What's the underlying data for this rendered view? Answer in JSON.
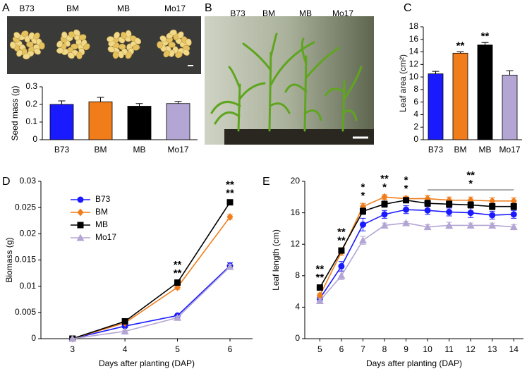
{
  "panel_labels": [
    "A",
    "B",
    "C",
    "D",
    "E"
  ],
  "photos": [
    {
      "labels": [
        "B73",
        "BM",
        "MB",
        "Mo17"
      ]
    },
    {
      "labels": [
        "B73",
        "BM",
        "MB",
        "Mo17"
      ]
    }
  ],
  "chart_data": [
    {
      "type": "bar",
      "ylabel": "Seed mass (g)",
      "categories": [
        "B73",
        "BM",
        "MB",
        "Mo17"
      ],
      "values": [
        0.2,
        0.215,
        0.19,
        0.205
      ],
      "errors": [
        0.02,
        0.025,
        0.015,
        0.012
      ],
      "colors": [
        "#1a1aff",
        "#f07c1a",
        "#000000",
        "#b3a6d4"
      ],
      "ylim": [
        0,
        0.3
      ],
      "yticks": [
        0,
        0.1,
        0.2,
        0.3
      ],
      "grid": false
    },
    {
      "type": "bar",
      "ylabel": "Leaf area (cm²)",
      "categories": [
        "B73",
        "BM",
        "MB",
        "Mo17"
      ],
      "values": [
        10.5,
        13.8,
        15.1,
        10.3
      ],
      "errors": [
        0.4,
        0.2,
        0.4,
        0.7
      ],
      "colors": [
        "#1a1aff",
        "#f07c1a",
        "#000000",
        "#b3a6d4"
      ],
      "ylim": [
        0,
        18
      ],
      "yticks": [
        0,
        2,
        4,
        6,
        8,
        10,
        12,
        14,
        16,
        18
      ],
      "grid": false,
      "annotations": [
        {
          "at": "BM",
          "lines": [
            {
              "text": "**",
              "color": "#000000"
            }
          ]
        },
        {
          "at": "MB",
          "lines": [
            {
              "text": "**",
              "color": "#000000"
            }
          ]
        }
      ]
    },
    {
      "type": "line",
      "xlabel": "Days after planting (DAP)",
      "ylabel": "Biomass (g)",
      "x": [
        3,
        4,
        5,
        6
      ],
      "xlim": [
        2.4,
        6.43
      ],
      "xticks": [
        3,
        4,
        5,
        6
      ],
      "ylim": [
        0,
        0.03
      ],
      "yticks": [
        0,
        0.005,
        0.01,
        0.015,
        0.02,
        0.025,
        0.03
      ],
      "grid": false,
      "legend": "upper left",
      "series": [
        {
          "name": "B73",
          "color": "#1a1aff",
          "marker": "circle",
          "values": [
            0,
            0.0024,
            0.0044,
            0.0139
          ],
          "errors": [
            0,
            0.0003,
            0.0002,
            0.0006
          ]
        },
        {
          "name": "BM",
          "color": "#f07c1a",
          "marker": "diamond",
          "values": [
            0,
            0.003,
            0.0098,
            0.0232
          ],
          "errors": [
            0,
            0.0002,
            0.0004,
            0.0004
          ]
        },
        {
          "name": "MB",
          "color": "#000000",
          "marker": "square",
          "values": [
            0,
            0.0033,
            0.0107,
            0.026
          ],
          "errors": [
            0,
            0.0002,
            0.0003,
            0.0003
          ]
        },
        {
          "name": "Mo17",
          "color": "#b3a6d4",
          "marker": "triangle",
          "values": [
            0,
            0.0014,
            0.004,
            0.0137
          ],
          "errors": [
            0,
            0.0002,
            0.0002,
            0.0005
          ]
        }
      ],
      "annotations": [
        {
          "at": 5,
          "lines": [
            {
              "text": "**",
              "color": "#000000"
            },
            {
              "text": "**",
              "color": "#d9822b"
            }
          ]
        },
        {
          "at": 6,
          "lines": [
            {
              "text": "**",
              "color": "#000000"
            },
            {
              "text": "**",
              "color": "#d9822b"
            }
          ]
        }
      ]
    },
    {
      "type": "line",
      "xlabel": "Days after planting (DAP)",
      "ylabel": "Leaf length (cm)",
      "x": [
        5,
        6,
        7,
        8,
        9,
        10,
        11,
        12,
        13,
        14
      ],
      "xlim": [
        4.3,
        14.45
      ],
      "xticks": [
        5,
        6,
        7,
        8,
        9,
        10,
        11,
        12,
        13,
        14
      ],
      "ylim": [
        0,
        20
      ],
      "yticks": [
        0,
        4,
        8,
        12,
        16,
        20
      ],
      "grid": false,
      "significance_span": [
        10,
        14
      ],
      "series": [
        {
          "name": "B73",
          "color": "#1a1aff",
          "marker": "circle",
          "values": [
            5.1,
            9.2,
            14.5,
            15.8,
            16.4,
            16.3,
            16.1,
            16.0,
            15.7,
            15.8
          ],
          "errors": [
            0.4,
            0.6,
            0.8,
            0.5,
            0.5,
            0.5,
            0.5,
            0.6,
            0.5,
            0.5
          ]
        },
        {
          "name": "BM",
          "color": "#f07c1a",
          "marker": "diamond",
          "values": [
            5.5,
            11.0,
            16.8,
            18.0,
            17.8,
            17.8,
            17.6,
            17.6,
            17.5,
            17.5
          ],
          "errors": [
            0.3,
            0.4,
            0.4,
            0.3,
            0.3,
            0.4,
            0.4,
            0.4,
            0.4,
            0.4
          ]
        },
        {
          "name": "MB",
          "color": "#000000",
          "marker": "square",
          "values": [
            6.5,
            11.2,
            16.2,
            17.1,
            17.6,
            17.2,
            17.1,
            17.0,
            16.8,
            16.8
          ],
          "errors": [
            0.3,
            0.3,
            0.4,
            0.4,
            0.3,
            0.4,
            0.4,
            0.4,
            0.4,
            0.4
          ]
        },
        {
          "name": "Mo17",
          "color": "#b3a6d4",
          "marker": "triangle",
          "values": [
            4.8,
            8.0,
            12.5,
            14.4,
            14.7,
            14.2,
            14.4,
            14.4,
            14.4,
            14.2
          ],
          "errors": [
            0.3,
            0.5,
            0.5,
            0.3,
            0.2,
            0.3,
            0.4,
            0.3,
            0.3,
            0.3
          ]
        }
      ],
      "annotations": [
        {
          "at": 5,
          "lines": [
            {
              "text": "**",
              "color": "#d9822b"
            },
            {
              "text": "**",
              "color": "#000000"
            }
          ]
        },
        {
          "at": 6,
          "lines": [
            {
              "text": "**",
              "color": "#d9822b"
            },
            {
              "text": "**",
              "color": "#000000"
            }
          ]
        },
        {
          "at": 7,
          "lines": [
            {
              "text": "*",
              "color": "#d9822b"
            },
            {
              "text": "*",
              "color": "#000000"
            }
          ]
        },
        {
          "at": 8,
          "lines": [
            {
              "text": "**",
              "color": "#d9822b"
            },
            {
              "text": "*",
              "color": "#000000"
            }
          ]
        },
        {
          "at": 9,
          "lines": [
            {
              "text": "*",
              "color": "#d9822b"
            },
            {
              "text": "*",
              "color": "#000000"
            }
          ]
        },
        {
          "at": 12,
          "lines": [
            {
              "text": "**",
              "color": "#d9822b"
            },
            {
              "text": "*",
              "color": "#000000"
            }
          ]
        }
      ]
    }
  ]
}
